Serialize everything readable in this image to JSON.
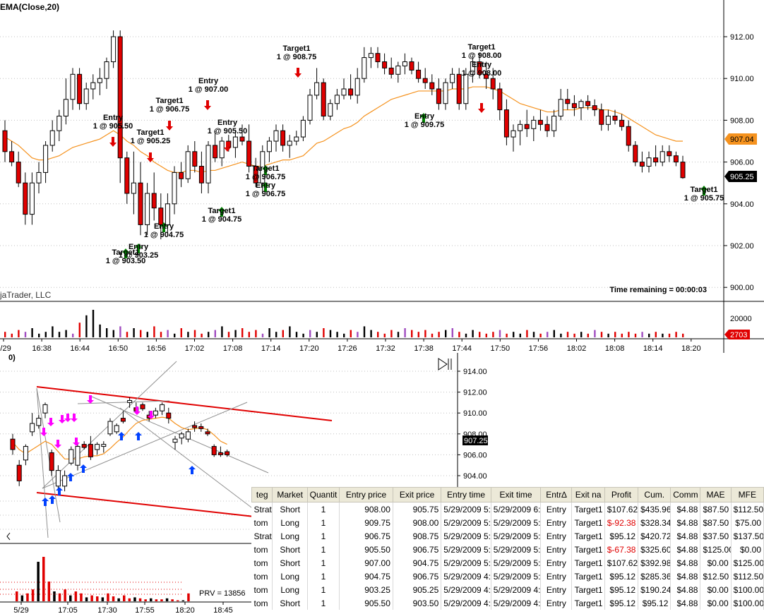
{
  "top_chart": {
    "indicator_label": "EMA(Close,20)",
    "watermark": "jaTrader, LLC",
    "time_remaining": "Time remaining = 00:00:03",
    "y_ticks": [
      "912.00",
      "910.00",
      "908.00",
      "906.00",
      "904.00",
      "902.00",
      "900.00"
    ],
    "ema_value_badge": "907.04",
    "price_badge": "905.25",
    "volume_tick": "20000",
    "volume_badge": "2703",
    "x_ticks": [
      "5/29",
      "16:38",
      "16:44",
      "16:50",
      "16:56",
      "17:02",
      "17:08",
      "17:14",
      "17:20",
      "17:26",
      "17:32",
      "17:38",
      "17:44",
      "17:50",
      "17:56",
      "18:02",
      "18:08",
      "18:14",
      "18:20"
    ],
    "colors": {
      "up": "#ffffff",
      "down": "#e00000",
      "ema": "#f5921e",
      "entry_long": "#008000",
      "entry_short": "#e00000"
    }
  },
  "chart_data": {
    "type": "candlestick",
    "ylim": [
      899.5,
      913.5
    ],
    "candles": [
      [
        907.5,
        908.0,
        906.0,
        906.5
      ],
      [
        906.5,
        907.0,
        905.8,
        906.0
      ],
      [
        906.0,
        906.5,
        904.8,
        905.0
      ],
      [
        905.0,
        905.5,
        903.0,
        903.5
      ],
      [
        903.5,
        905.5,
        903.0,
        905.0
      ],
      [
        905.0,
        906.0,
        904.5,
        905.5
      ],
      [
        905.5,
        907.0,
        905.0,
        906.8
      ],
      [
        906.8,
        908.0,
        906.5,
        907.5
      ],
      [
        907.5,
        908.5,
        907.0,
        908.2
      ],
      [
        908.2,
        910.0,
        907.8,
        909.0
      ],
      [
        909.0,
        910.5,
        908.5,
        910.2
      ],
      [
        910.2,
        910.5,
        908.5,
        908.8
      ],
      [
        908.8,
        909.8,
        908.5,
        909.5
      ],
      [
        909.5,
        910.2,
        909.0,
        909.8
      ],
      [
        909.8,
        910.5,
        909.2,
        910.0
      ],
      [
        910.0,
        911.0,
        909.5,
        910.8
      ],
      [
        910.8,
        912.3,
        910.5,
        912.0
      ],
      [
        912.0,
        912.3,
        905.0,
        906.2
      ],
      [
        906.2,
        906.5,
        904.0,
        904.5
      ],
      [
        904.5,
        906.5,
        903.5,
        905.0
      ],
      [
        905.0,
        906.0,
        902.5,
        903.0
      ],
      [
        903.0,
        905.0,
        902.5,
        904.5
      ],
      [
        904.5,
        905.5,
        903.2,
        903.8
      ],
      [
        903.8,
        904.5,
        902.3,
        903.0
      ],
      [
        903.0,
        904.5,
        902.5,
        904.0
      ],
      [
        904.0,
        905.8,
        903.5,
        905.5
      ],
      [
        905.5,
        906.0,
        904.8,
        905.2
      ],
      [
        905.2,
        906.8,
        905.0,
        906.5
      ],
      [
        906.5,
        907.0,
        905.5,
        905.8
      ],
      [
        905.8,
        906.5,
        904.5,
        905.0
      ],
      [
        905.0,
        907.0,
        904.5,
        906.8
      ],
      [
        906.8,
        907.5,
        906.0,
        906.2
      ],
      [
        906.2,
        907.2,
        905.8,
        907.0
      ],
      [
        907.0,
        907.3,
        906.5,
        906.7
      ],
      [
        906.7,
        907.5,
        906.2,
        907.2
      ],
      [
        907.2,
        907.8,
        906.8,
        907.0
      ],
      [
        907.0,
        907.8,
        905.5,
        905.8
      ],
      [
        905.8,
        906.2,
        904.8,
        905.0
      ],
      [
        905.0,
        906.8,
        904.5,
        906.5
      ],
      [
        906.5,
        907.2,
        906.0,
        907.0
      ],
      [
        907.0,
        907.8,
        906.5,
        907.5
      ],
      [
        907.5,
        907.8,
        906.5,
        906.8
      ],
      [
        906.8,
        907.3,
        906.2,
        907.0
      ],
      [
        907.0,
        907.5,
        906.8,
        907.2
      ],
      [
        907.2,
        908.2,
        907.0,
        908.0
      ],
      [
        908.0,
        909.5,
        907.8,
        909.2
      ],
      [
        909.2,
        910.5,
        909.0,
        909.8
      ],
      [
        909.8,
        910.0,
        908.0,
        908.2
      ],
      [
        908.2,
        909.0,
        908.0,
        908.8
      ],
      [
        908.8,
        909.5,
        908.5,
        909.2
      ],
      [
        909.2,
        910.0,
        909.0,
        909.5
      ],
      [
        909.5,
        910.2,
        909.0,
        909.2
      ],
      [
        909.2,
        910.5,
        908.8,
        910.0
      ],
      [
        910.0,
        911.5,
        909.8,
        911.0
      ],
      [
        911.0,
        911.5,
        910.5,
        911.2
      ],
      [
        911.2,
        911.5,
        910.5,
        910.8
      ],
      [
        910.8,
        911.2,
        910.2,
        910.5
      ],
      [
        910.5,
        911.0,
        910.0,
        910.2
      ],
      [
        910.2,
        910.8,
        909.8,
        910.6
      ],
      [
        910.6,
        911.2,
        910.2,
        910.8
      ],
      [
        910.8,
        911.0,
        910.2,
        910.4
      ],
      [
        910.4,
        910.8,
        909.8,
        910.0
      ],
      [
        910.0,
        910.5,
        909.5,
        909.8
      ],
      [
        909.8,
        910.2,
        909.2,
        909.5
      ],
      [
        909.5,
        910.0,
        908.5,
        908.8
      ],
      [
        908.8,
        910.0,
        908.5,
        909.8
      ],
      [
        909.8,
        910.5,
        909.5,
        910.2
      ],
      [
        910.2,
        910.5,
        908.5,
        908.8
      ],
      [
        908.8,
        910.5,
        908.5,
        910.2
      ],
      [
        910.2,
        911.0,
        909.8,
        910.8
      ],
      [
        910.8,
        911.2,
        910.0,
        910.2
      ],
      [
        910.2,
        910.8,
        909.5,
        910.0
      ],
      [
        910.0,
        910.5,
        909.0,
        909.5
      ],
      [
        909.5,
        909.8,
        908.0,
        908.5
      ],
      [
        908.5,
        909.0,
        906.8,
        907.2
      ],
      [
        907.2,
        907.8,
        906.5,
        907.5
      ],
      [
        907.5,
        908.0,
        906.8,
        907.8
      ],
      [
        907.8,
        908.5,
        907.2,
        907.6
      ],
      [
        907.6,
        908.2,
        907.0,
        908.0
      ],
      [
        908.0,
        908.5,
        907.5,
        907.8
      ],
      [
        907.8,
        908.2,
        907.2,
        907.5
      ],
      [
        907.5,
        908.5,
        907.2,
        908.2
      ],
      [
        908.2,
        909.5,
        908.0,
        909.0
      ],
      [
        909.0,
        909.5,
        908.5,
        908.8
      ],
      [
        908.8,
        909.2,
        908.2,
        908.6
      ],
      [
        908.6,
        909.0,
        908.0,
        908.9
      ],
      [
        908.9,
        909.2,
        908.5,
        908.7
      ],
      [
        908.7,
        909.0,
        908.2,
        908.5
      ],
      [
        908.5,
        908.8,
        907.5,
        907.8
      ],
      [
        907.8,
        908.5,
        907.5,
        908.2
      ],
      [
        908.2,
        908.5,
        907.8,
        908.0
      ],
      [
        908.0,
        908.3,
        907.5,
        907.7
      ],
      [
        907.7,
        908.0,
        906.5,
        906.8
      ],
      [
        906.8,
        907.0,
        905.8,
        906.0
      ],
      [
        906.0,
        906.5,
        905.5,
        905.8
      ],
      [
        905.8,
        906.5,
        905.5,
        906.2
      ],
      [
        906.2,
        906.8,
        905.8,
        906.0
      ],
      [
        906.0,
        906.8,
        905.8,
        906.5
      ],
      [
        906.5,
        906.8,
        906.0,
        906.3
      ],
      [
        906.3,
        906.5,
        905.8,
        906.0
      ],
      [
        906.0,
        906.3,
        905.2,
        905.25
      ]
    ],
    "ema": [
      907.2,
      907.0,
      906.8,
      906.5,
      906.2,
      906.1,
      906.1,
      906.2,
      906.3,
      906.5,
      906.7,
      906.8,
      906.9,
      907.0,
      907.1,
      907.3,
      907.5,
      907.3,
      907.0,
      906.8,
      906.5,
      906.3,
      906.0,
      905.8,
      905.6,
      905.5,
      905.5,
      905.6,
      905.6,
      905.5,
      905.6,
      905.6,
      905.7,
      905.8,
      905.9,
      906.0,
      905.9,
      905.8,
      905.8,
      905.9,
      906.0,
      906.1,
      906.1,
      906.2,
      906.3,
      906.6,
      906.9,
      907.0,
      907.2,
      907.4,
      907.6,
      907.7,
      907.9,
      908.2,
      908.4,
      908.6,
      908.8,
      909.0,
      909.1,
      909.2,
      909.3,
      909.4,
      909.4,
      909.4,
      909.4,
      909.4,
      909.5,
      909.5,
      909.5,
      909.6,
      909.6,
      909.6,
      909.5,
      909.4,
      909.2,
      909.0,
      908.8,
      908.7,
      908.6,
      908.5,
      908.4,
      908.4,
      908.5,
      908.5,
      908.5,
      908.6,
      908.6,
      908.6,
      908.5,
      908.5,
      908.4,
      908.3,
      908.1,
      907.9,
      907.7,
      907.5,
      907.3,
      907.2,
      907.1,
      907.0,
      907.0
    ],
    "volume": [
      3,
      2,
      4,
      3,
      5,
      2,
      3,
      6,
      3,
      4,
      2,
      8,
      12,
      15,
      7,
      5,
      4,
      6,
      3,
      5,
      4,
      3,
      6,
      3,
      4,
      2,
      5,
      3,
      4,
      2,
      3,
      4,
      6,
      3,
      4,
      5,
      3,
      4,
      2,
      5,
      3,
      4,
      6,
      3,
      2,
      4,
      3,
      5,
      4,
      3,
      2,
      4,
      3,
      6,
      4,
      3,
      2,
      4,
      3,
      5,
      4,
      3,
      4,
      2,
      3,
      4,
      5,
      3,
      2,
      4,
      3,
      2,
      3,
      4,
      2,
      3,
      2,
      4,
      3,
      2,
      3,
      4,
      2,
      3,
      2,
      3,
      2,
      4,
      3,
      2,
      3,
      2,
      3,
      2,
      3,
      2,
      3,
      2,
      2,
      3,
      2
    ]
  },
  "trade_markers": [
    {
      "label1": "Entry",
      "label2": "1 @ 905.50"
    },
    {
      "label1": "Target1",
      "label2": "1 @ 905.25"
    },
    {
      "label1": "Target1",
      "label2": "1 @ 906.75"
    },
    {
      "label1": "Entry",
      "label2": "1 @ 907.00"
    },
    {
      "label1": "Entry",
      "label2": "1 @ 905.50"
    },
    {
      "label1": "Target1",
      "label2": "1 @ 908.75"
    },
    {
      "label1": "Target1",
      "label2": "1 @ 908.00"
    },
    {
      "label1": "Entry",
      "label2": "1 @ 908.00"
    },
    {
      "label1": "Entry",
      "label2": "1 @ 909.75"
    },
    {
      "label1": "Target1",
      "label2": "1 @ 906.75"
    },
    {
      "label1": "Entry",
      "label2": "1 @ 906.75"
    },
    {
      "label1": "Target1",
      "label2": "1 @ 904.75"
    },
    {
      "label1": "Entry",
      "label2": "1 @ 904.75"
    },
    {
      "label1": "Entry",
      "label2": "1 @ 903.25"
    },
    {
      "label1": "Target1",
      "label2": "1 @ 903.50"
    },
    {
      "label1": "Target1",
      "label2": "1 @ 905.75"
    }
  ],
  "bottom_chart": {
    "corner_label": "0)",
    "y_ticks": [
      "914.00",
      "912.00",
      "910.00",
      "908.00",
      "906.00",
      "904.00"
    ],
    "price_badge": "907.25",
    "prv_label": "PRV = 13856",
    "x_ticks": [
      "5/29",
      "17:05",
      "17:30",
      "17:55",
      "18:20",
      "18:45"
    ]
  },
  "trades_table": {
    "headers": [
      "teg",
      "Market",
      "Quantit",
      "Entry price",
      "Exit price",
      "Entry time",
      "Exit time",
      "Entr∆",
      "Exit na",
      "Profit",
      "Cum.",
      "Comm",
      "MAE",
      "MFE"
    ],
    "rows": [
      [
        "Strat",
        "Short",
        "1",
        "908.00",
        "905.75",
        "5/29/2009 5:",
        "5/29/2009 6:",
        "Entry",
        "Target1",
        "$107.62",
        "$435.96",
        "$4.88",
        "$87.50",
        "$112.50"
      ],
      [
        "tom",
        "Long",
        "1",
        "909.75",
        "908.00",
        "5/29/2009 5:",
        "5/29/2009 5:",
        "Entry",
        "Target1",
        "$-92.38",
        "$328.34",
        "$4.88",
        "$87.50",
        "$75.00"
      ],
      [
        "Strat",
        "Long",
        "1",
        "906.75",
        "908.75",
        "5/29/2009 5:",
        "5/29/2009 5:",
        "Entry",
        "Target1",
        "$95.12",
        "$420.72",
        "$4.88",
        "$37.50",
        "$137.50"
      ],
      [
        "tom",
        "Short",
        "1",
        "905.50",
        "906.75",
        "5/29/2009 5:",
        "5/29/2009 5:",
        "Entry",
        "Target1",
        "$-67.38",
        "$325.60",
        "$4.88",
        "$125.00",
        "$0.00"
      ],
      [
        "tom",
        "Short",
        "1",
        "907.00",
        "904.75",
        "5/29/2009 5:",
        "5/29/2009 5:",
        "Entry",
        "Target1",
        "$107.62",
        "$392.98",
        "$4.88",
        "$0.00",
        "$125.00"
      ],
      [
        "tom",
        "Long",
        "1",
        "904.75",
        "906.75",
        "5/29/2009 4:",
        "5/29/2009 5:",
        "Entry",
        "Target1",
        "$95.12",
        "$285.36",
        "$4.88",
        "$12.50",
        "$112.50"
      ],
      [
        "tom",
        "Long",
        "1",
        "903.25",
        "905.25",
        "5/29/2009 4:",
        "5/29/2009 4:",
        "Entry",
        "Target1",
        "$95.12",
        "$190.24",
        "$4.88",
        "$0.00",
        "$100.00"
      ],
      [
        "tom",
        "Short",
        "1",
        "905.50",
        "903.50",
        "5/29/2009 4:",
        "5/29/2009 4:",
        "Entry",
        "Target1",
        "$95.12",
        "$95.12",
        "$4.88",
        "$0.00",
        "$100.00"
      ]
    ]
  }
}
